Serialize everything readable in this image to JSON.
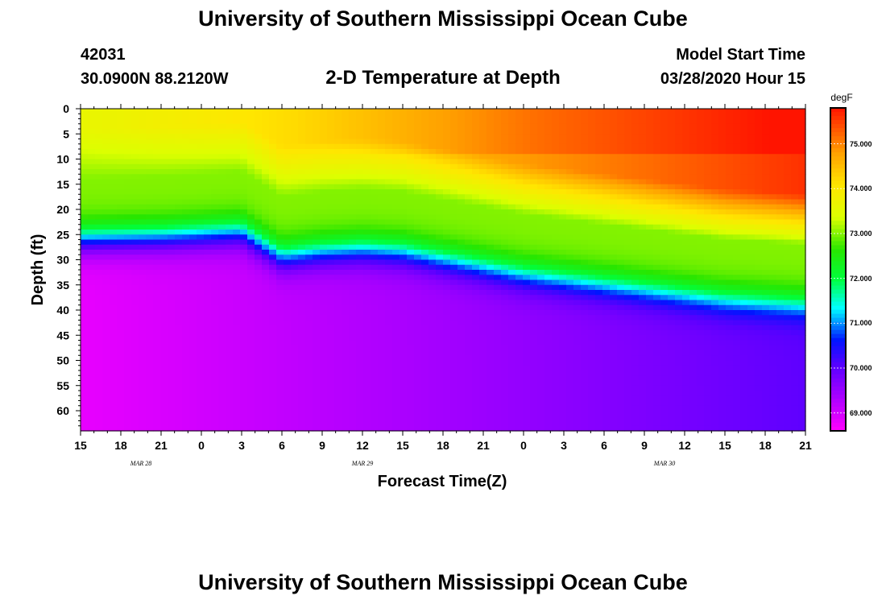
{
  "header": {
    "title": "University of Southern Mississippi Ocean Cube",
    "station_id": "42031",
    "coords": "30.0900N 88.2120W",
    "subtitle": "2-D Temperature at Depth",
    "model_start_label": "Model Start Time",
    "model_start_value": "03/28/2020 Hour 15"
  },
  "footer": {
    "title": "University of Southern Mississippi Ocean Cube"
  },
  "chart_data": {
    "type": "heatmap",
    "title": "2-D Temperature at Depth",
    "xlabel": "Forecast Time(Z)",
    "ylabel": "Depth (ft)",
    "x_hours_range": [
      0,
      54
    ],
    "x_tick_step_hours": 3,
    "x_tick_labels": [
      "15",
      "18",
      "21",
      "0",
      "3",
      "6",
      "9",
      "12",
      "15",
      "18",
      "21",
      "0",
      "3",
      "6",
      "9",
      "12",
      "15",
      "18",
      "21"
    ],
    "x_date_labels": [
      {
        "label": "MAR 28",
        "hour": 4.5
      },
      {
        "label": "MAR 29",
        "hour": 21
      },
      {
        "label": "MAR 30",
        "hour": 43.5
      }
    ],
    "y_range_ft": [
      0,
      64
    ],
    "y_ticks": [
      0,
      5,
      10,
      15,
      20,
      25,
      30,
      35,
      40,
      45,
      50,
      55,
      60
    ],
    "y_tick_labels": [
      "0",
      "5",
      "10",
      "15",
      "20",
      "25",
      "30",
      "35",
      "40",
      "45",
      "50",
      "55",
      "60"
    ],
    "colorbar": {
      "unit": "degF",
      "min": 68.6,
      "max": 75.8,
      "tick_values": [
        75.0,
        74.0,
        73.0,
        72.0,
        71.0,
        70.0,
        69.0
      ],
      "tick_labels": [
        "75.000",
        "74.000",
        "73.000",
        "72.000",
        "71.000",
        "70.000",
        "69.000"
      ]
    },
    "thermocline_depth_ft": {
      "hours": [
        0,
        6,
        12,
        15,
        18,
        21,
        24,
        27,
        30,
        33,
        36,
        39,
        42,
        45,
        48,
        51,
        54
      ],
      "values": [
        26,
        25.5,
        24.5,
        29.5,
        28.5,
        28,
        28.5,
        30,
        31.5,
        33,
        34,
        35,
        36,
        37,
        38,
        38.5,
        39
      ]
    },
    "approx_temperature_degF": {
      "surface": "73.6 at hour 0 rising to 75.8 at hour 54",
      "mid_layer": "73.0 above thermocline",
      "bottom": "68.8 at hour 0 rising to 70.0 at hour 54"
    }
  }
}
